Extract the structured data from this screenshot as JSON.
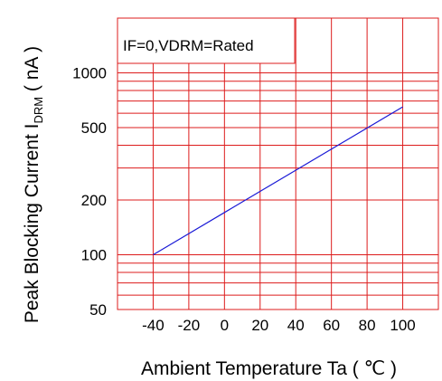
{
  "chart_data": {
    "type": "line",
    "title": "",
    "annotation": "IF=0,VDRM=Rated",
    "xlabel": "Ambient Temperature Ta ( ℃ )",
    "ylabel": {
      "prefix": "Peak Blocking Current I",
      "subscript": "DRM",
      "suffix": " ( nA )"
    },
    "x_scale": "linear",
    "y_scale": "log",
    "xlim": [
      -60,
      120
    ],
    "ylim": [
      50,
      2000
    ],
    "x_ticks": [
      -40,
      -20,
      0,
      20,
      40,
      60,
      80,
      100
    ],
    "x_tick_labels": [
      "-40",
      "-20",
      "0",
      "20",
      "40",
      "60",
      "80",
      "100"
    ],
    "y_ticks": [
      50,
      100,
      200,
      500,
      1000
    ],
    "y_tick_labels": [
      "50",
      "100",
      "200",
      "500",
      "1000"
    ],
    "y_minor_grid": [
      60,
      70,
      80,
      90,
      300,
      400,
      600,
      700,
      800,
      900
    ],
    "grid": true,
    "colors": {
      "grid": "#dd1c1c",
      "line": "#1a1ad6"
    },
    "series": [
      {
        "x": [
          -40,
          100
        ],
        "y": [
          100,
          650
        ]
      }
    ]
  }
}
